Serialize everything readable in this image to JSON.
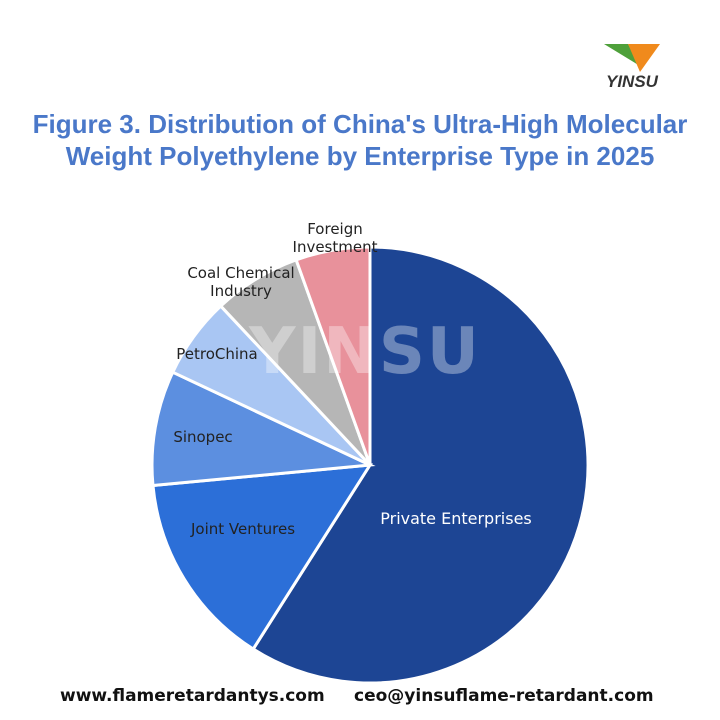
{
  "brand": {
    "logo": "YINSU",
    "watermark": "YINSU"
  },
  "chart_data": {
    "type": "pie",
    "title": "Figure 3. Distribution of China's Ultra-High Molecular Weight Polyethylene by Enterprise Type in 2025",
    "categories": [
      "Private Enterprises",
      "Joint Ventures",
      "Sinopec",
      "PetroChina",
      "Coal Chemical Industry",
      "Foreign Investment"
    ],
    "values": [
      59,
      14.5,
      8.5,
      6,
      6.5,
      5.5
    ],
    "colors": [
      "#1d4594",
      "#2c6fd8",
      "#5c8fe0",
      "#a9c6f3",
      "#b6b6b6",
      "#e8919b"
    ]
  },
  "footer": {
    "website": "www.flameretardantys.com",
    "email": "ceo@yinsuflame-retardant.com"
  }
}
